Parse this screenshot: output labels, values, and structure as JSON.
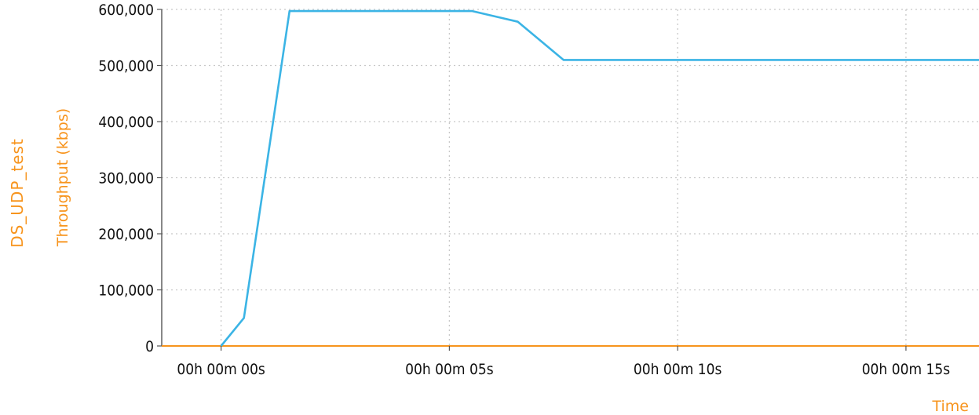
{
  "chart_data": {
    "type": "line",
    "title": "DS_UDP_test",
    "ylabel": "Throughput (kbps)",
    "xlabel": "Time",
    "ylim": [
      0,
      600000
    ],
    "xlim": [
      -1.3,
      16.6
    ],
    "y_ticks": [
      0,
      100000,
      200000,
      300000,
      400000,
      500000,
      600000
    ],
    "y_tick_labels": [
      "0",
      "100,000",
      "200,000",
      "300,000",
      "400,000",
      "500,000",
      "600,000"
    ],
    "x_ticks": [
      0,
      5,
      10,
      15
    ],
    "x_tick_labels": [
      "00h 00m 00s",
      "00h 00m 05s",
      "00h 00m 10s",
      "00h 00m 15s"
    ],
    "grid": true,
    "series": [
      {
        "x": [
          0,
          0.5,
          1.5,
          5.5,
          6.5,
          7.5,
          16.6
        ],
        "y": [
          0,
          50000,
          597000,
          597000,
          578000,
          510000,
          510000
        ]
      }
    ],
    "colors": {
      "line": "#3bb4e5",
      "axis": "#f7941d",
      "grid": "#c8c8c8",
      "axis_line": "#555555"
    }
  }
}
